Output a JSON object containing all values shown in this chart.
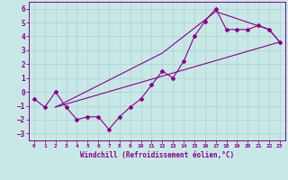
{
  "xlabel": "Windchill (Refroidissement éolien,°C)",
  "bg_color": "#c8e8e8",
  "line_color": "#880088",
  "xlim": [
    -0.5,
    23.5
  ],
  "ylim": [
    -3.5,
    6.5
  ],
  "yticks": [
    -3,
    -2,
    -1,
    0,
    1,
    2,
    3,
    4,
    5,
    6
  ],
  "xticks": [
    0,
    1,
    2,
    3,
    4,
    5,
    6,
    7,
    8,
    9,
    10,
    11,
    12,
    13,
    14,
    15,
    16,
    17,
    18,
    19,
    20,
    21,
    22,
    23
  ],
  "data_x": [
    0,
    1,
    2,
    3,
    4,
    5,
    6,
    7,
    8,
    9,
    10,
    11,
    12,
    13,
    14,
    15,
    16,
    17,
    18,
    19,
    20,
    21,
    22,
    23
  ],
  "data_y": [
    -0.5,
    -1.1,
    0.0,
    -1.1,
    -2.0,
    -1.8,
    -1.8,
    -2.7,
    -1.8,
    -1.1,
    -0.5,
    0.5,
    1.5,
    1.0,
    2.2,
    4.0,
    5.1,
    6.0,
    4.5,
    4.5,
    4.5,
    4.8,
    4.5,
    3.6
  ],
  "line1_x": [
    2,
    23
  ],
  "line1_y": [
    -1.1,
    3.6
  ],
  "line2_x": [
    2,
    12,
    17,
    22,
    23
  ],
  "line2_y": [
    -1.1,
    2.8,
    5.8,
    4.5,
    3.6
  ]
}
